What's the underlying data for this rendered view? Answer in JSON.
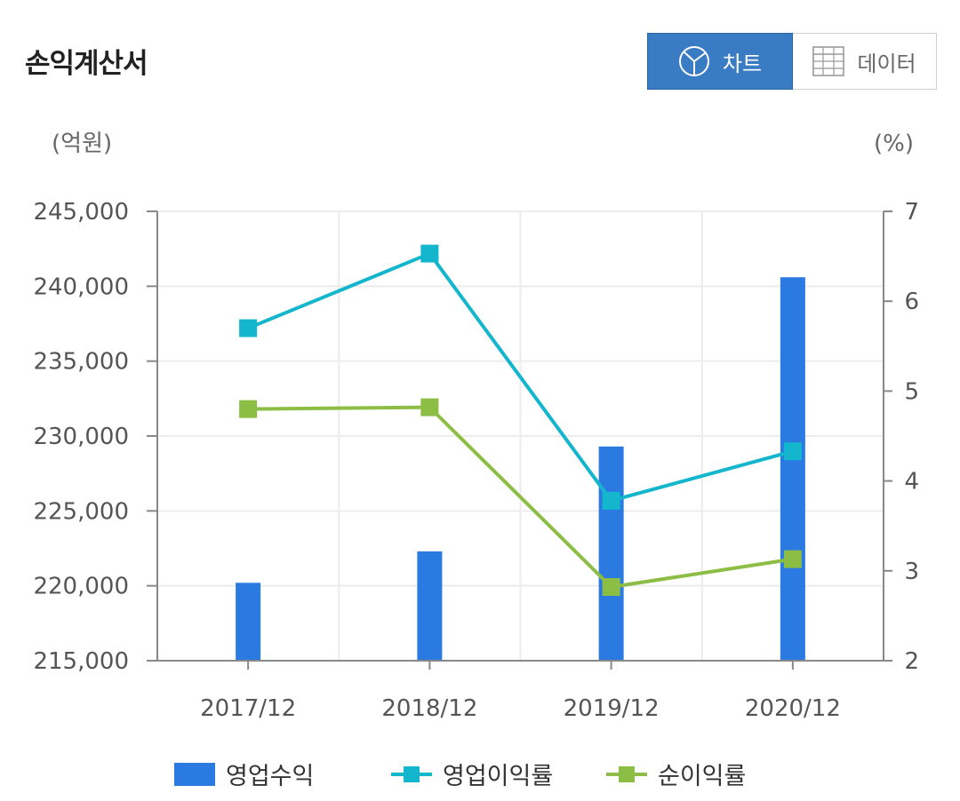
{
  "header": {
    "title": "손익계산서"
  },
  "toggle": {
    "chart_label": "차트",
    "data_label": "데이터"
  },
  "colors": {
    "bar": "#2a7ae2",
    "op_margin": "#13b6cc",
    "net_margin": "#8cbd44",
    "toggle_active": "#3a7cc4"
  },
  "icons": {
    "chart_button": "pie-chart-icon",
    "data_button": "table-grid-icon"
  },
  "chart_data": {
    "type": "bar+line",
    "categories": [
      "2017/12",
      "2018/12",
      "2019/12",
      "2020/12"
    ],
    "left_axis": {
      "unit_label": "(억원)",
      "ylim": [
        215000,
        245000
      ],
      "ticks": [
        "215,000",
        "220,000",
        "225,000",
        "230,000",
        "235,000",
        "240,000",
        "245,000"
      ],
      "tick_values": [
        215000,
        220000,
        225000,
        230000,
        235000,
        240000,
        245000
      ]
    },
    "right_axis": {
      "unit_label": "(%)",
      "ylim": [
        2,
        7
      ],
      "ticks": [
        "2",
        "3",
        "4",
        "5",
        "6",
        "7"
      ],
      "tick_values": [
        2,
        3,
        4,
        5,
        6,
        7
      ]
    },
    "series": [
      {
        "name": "영업수익",
        "kind": "bar",
        "axis": "left",
        "values": [
          220200,
          222300,
          229300,
          240600
        ]
      },
      {
        "name": "영업이익률",
        "kind": "line",
        "axis": "right",
        "values": [
          5.7,
          6.53,
          3.78,
          4.33
        ]
      },
      {
        "name": "순이익률",
        "kind": "line",
        "axis": "right",
        "values": [
          4.8,
          4.82,
          2.82,
          3.13
        ]
      }
    ],
    "grid": true,
    "legend_position": "bottom"
  }
}
